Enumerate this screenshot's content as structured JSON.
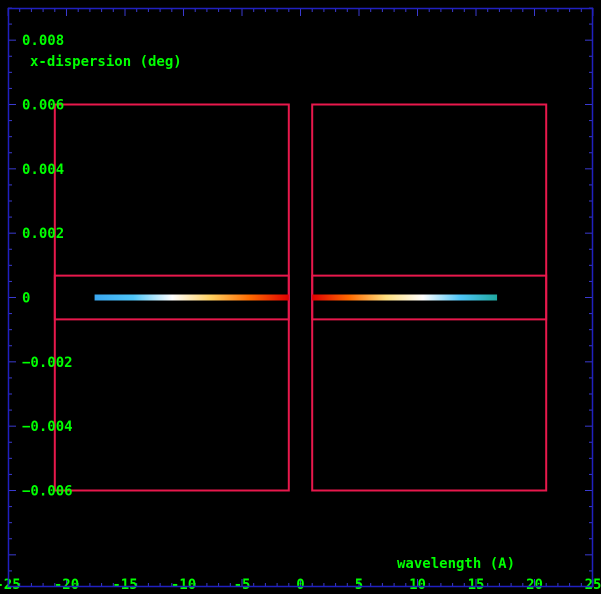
{
  "chart_data": {
    "type": "scatter",
    "title": "",
    "xlabel": "wavelength (A)",
    "ylabel": "x-dispersion (deg)",
    "xlim": [
      -25,
      25
    ],
    "ylim": [
      -0.009,
      0.009
    ],
    "grid": false,
    "x_ticks": [
      -25,
      -20,
      -15,
      -10,
      -5,
      0,
      5,
      10,
      15,
      20,
      25
    ],
    "x_tick_labels": [
      "-25",
      "-20",
      "-15",
      "-10",
      "-5",
      "0",
      "5",
      "10",
      "15",
      "20",
      "25"
    ],
    "y_ticks": [
      0.008,
      0.006,
      0.004,
      0.002,
      0,
      -0.002,
      -0.004,
      -0.006
    ],
    "y_tick_labels": [
      "0.008",
      "0.006",
      "0.004",
      "0.002",
      "0",
      "−0.002",
      "−0.004",
      "−0.006"
    ],
    "regions": [
      {
        "x0": -21.0,
        "x1": -1.0,
        "y0": -0.006,
        "y1": 0.006
      },
      {
        "x0": 1.0,
        "x1": 21.0,
        "y0": -0.006,
        "y1": 0.006
      },
      {
        "x0": -21.0,
        "x1": -1.0,
        "y0": -0.00068,
        "y1": 0.00068
      },
      {
        "x0": 1.0,
        "x1": 21.0,
        "y0": -0.00068,
        "y1": 0.00068
      }
    ],
    "series": [
      {
        "x0": -17.6,
        "x1": -1.0,
        "y": 0,
        "gradient": [
          "#3aa7f0",
          "#4fc6f8",
          "#ffffff",
          "#ffd060",
          "#ff6a00",
          "#e00000"
        ]
      },
      {
        "x0": 1.0,
        "x1": 16.8,
        "y": 0,
        "gradient": [
          "#e00000",
          "#ff6a00",
          "#ffe080",
          "#ffffff",
          "#4fc6f8",
          "#20a8a0"
        ]
      }
    ]
  },
  "colors": {
    "background": "#000000",
    "frame": "#2020c0",
    "text": "#00ff00",
    "region": "#e8184c",
    "tick": "#3a3ad0"
  }
}
